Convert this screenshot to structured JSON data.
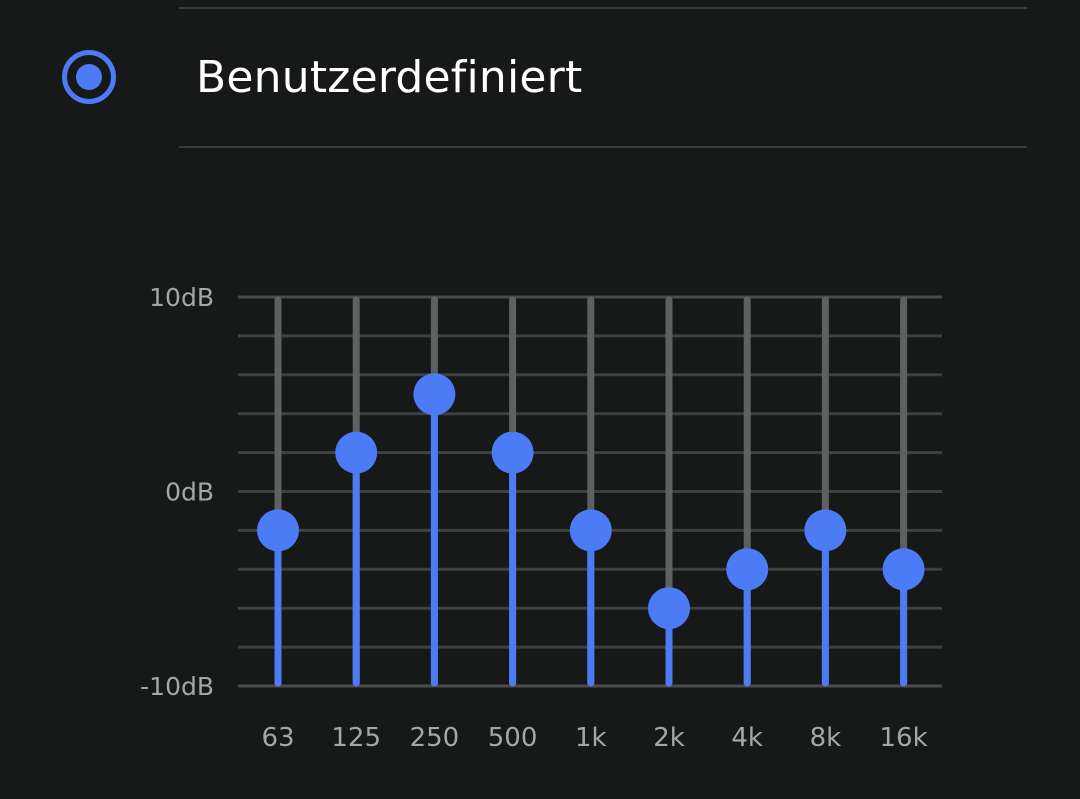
{
  "preset": {
    "label": "Benutzerdefiniert",
    "selected": true
  },
  "colors": {
    "background": "#171818",
    "accent": "#4b7bf5",
    "track": "#5f6061",
    "grid": "#3f4041",
    "label": "#a5a6a7"
  },
  "chart_data": {
    "type": "equalizer",
    "y_axis": {
      "min": -10,
      "max": 10,
      "unit": "dB",
      "tick_labels": [
        "10dB",
        "0dB",
        "-10dB"
      ],
      "tick_values": [
        10,
        0,
        -10
      ],
      "gridline_step": 2
    },
    "bands": [
      {
        "label": "63",
        "gain_db": -2
      },
      {
        "label": "125",
        "gain_db": 2
      },
      {
        "label": "250",
        "gain_db": 5
      },
      {
        "label": "500",
        "gain_db": 2
      },
      {
        "label": "1k",
        "gain_db": -2
      },
      {
        "label": "2k",
        "gain_db": -6
      },
      {
        "label": "4k",
        "gain_db": -4
      },
      {
        "label": "8k",
        "gain_db": -2
      },
      {
        "label": "16k",
        "gain_db": -4
      }
    ]
  }
}
